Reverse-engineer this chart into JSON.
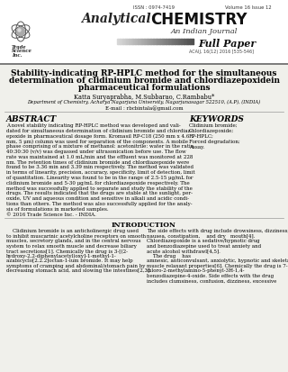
{
  "issn": "ISSN : 0974-7419",
  "volume": "Volume 16 Issue 12",
  "journal_name_italic": "Analytical",
  "journal_name_bold": "CHEMISTRY",
  "journal_subtitle": "An Indian Journal",
  "paper_type": "Full Paper",
  "acaij": "ACAIJ, 16(12) 2016 [535-546]",
  "title_line1": "Stability-indicating RP-HPLC method for the simultaneous",
  "title_line2": "determination of clidinium bromide and chlordiazepoxidein",
  "title_line3": "pharmaceutical formulations",
  "authors": "Katta Suryaprabha, M.Subbarao, C.Rambabu*",
  "affiliation": "Department of Chemistry, Acharya Nagarjuna University, Nagarjunasagar 522510, (A.P), (INDIA)",
  "email": "E-mail : rbcbintala@gmail.com",
  "abstract_title": "ABSTRACT",
  "keywords_title": "KEYWORDS",
  "keywords_lines": [
    "Clidinium bromide;",
    "Chlordiazepoxide;",
    "RP-HPLC;",
    "Forced degradation;",
    "Assay."
  ],
  "abstract_lines": [
    "A novel stability indicating RP-HPLC method was developed and vali-",
    "dated for simultaneous determination of clidinium bromide and chlordiaz-",
    "epoxide in pharmaceutical dosage form. Kromasil RP-C18 (250 mm x 4.6",
    "mm, 5 μm) column was used for separation of the components. A mobile",
    "phase comprising of a mixture of methanol: acetonitrile: water in the ratio",
    "40:30:30 (v/v) was degassed under ultrasonication before use. The flow",
    "rate was maintained at 1.0 mL/min and the effluent was monitored at 228",
    "nm. The retention times of clidinium bromide and chlordiazepoxide were",
    "found to be 3.36 min and 3.39 min respectively. The method was validated",
    "in terms of linearity, precision, accuracy, specificity, limit of detection, limit",
    "of quantitation. Linearity was found to be in the range of 2.5-15 μg/mL for",
    "clidinium bromide and 5-30 μg/mL for chlordiazepoxide respectively. The",
    "method was successfully applied to separate and study the stability of the",
    "drugs. The results indicated that the drugs are stable at the sunlight, per-",
    "oxide, UV and aqueous condition and sensitive in alkali and acidic condi-",
    "tions than others. The method was also successfully applied for the analy-",
    "sis of formulations in marketed samples.",
    "© 2016 Trade Science Inc. - INDIA."
  ],
  "intro_title": "INTRODUCTION",
  "col1_lines": [
    "    Clidinium bromide is an anticholinergic drug used",
    "to inhibit muscarinic acetylcholine receptors on smooth",
    "muscles, secretory glands, and in the central nervous",
    "system to relax smooth muscle and decrease biliary",
    "tract secretions[1]. Chemically the drug is 3-[(2-",
    "hydroxy-2,2-diphenylacetyl)oxy]-1-methyl-1-",
    "azabicyclo[2.2.2]octan-1-ium bromide. It may help",
    "symptoms of cramping and abdominal/stomach pain by",
    "decreasing stomach acid, and slowing the intestines[2,3]."
  ],
  "col2_lines": [
    "The side effects with drug include drowsiness, dizziness,",
    "nausea, constipation,    and dry   mouth[4].",
    "Chlordiazepoxide is a sedative/hypnotic drug",
    "and benzodiazepine used to treat anxiety and",
    "acute alcohol withdrawl[4,5].",
    "    The drug    has",
    "amnesic, anticonvulsant, anxiolytic, hypnotic and skeletal",
    "muscle relaxant properties[6]. Chemically the drug is 7-",
    "chloro-2-methylamino-5-phenyl-3H-1,4-",
    "benzodiazepine-4-oxide. Side effects with the drug",
    "includes clumsiness, confusion, dizziness, excessive"
  ],
  "bg_color": "#f0f0eb",
  "header_bg": "#ffffff"
}
